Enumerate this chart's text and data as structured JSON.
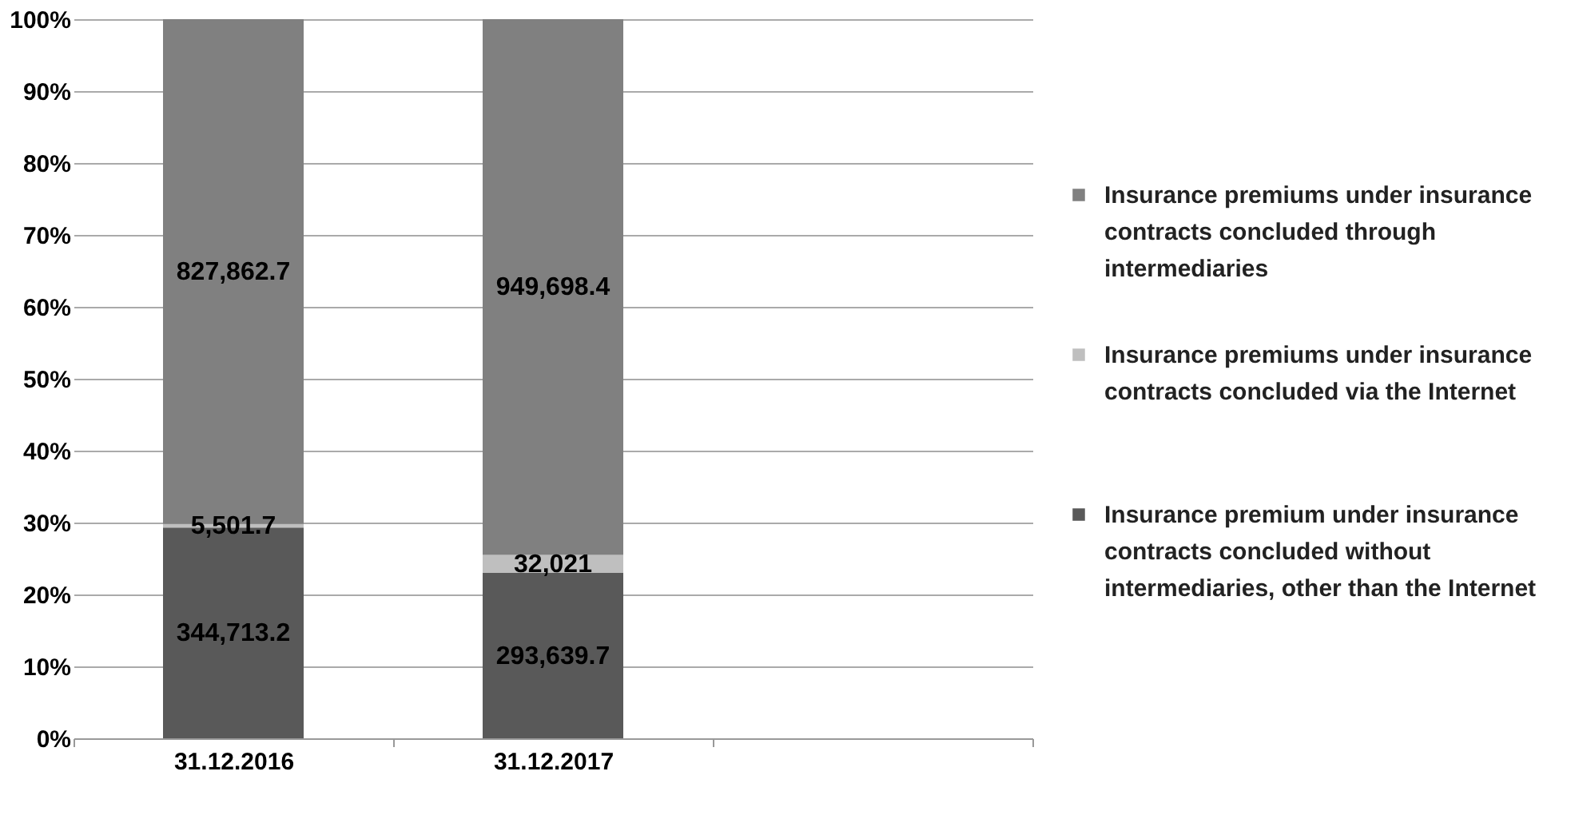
{
  "chart_data": {
    "type": "bar",
    "stacked": true,
    "categories": [
      "31.12.2016",
      "31.12.2017",
      null
    ],
    "ylim": [
      0,
      100
    ],
    "yticks": [
      {
        "value": 0,
        "label": "0%"
      },
      {
        "value": 10,
        "label": "10%"
      },
      {
        "value": 20,
        "label": "20%"
      },
      {
        "value": 30,
        "label": "30%"
      },
      {
        "value": 40,
        "label": "40%"
      },
      {
        "value": 50,
        "label": "50%"
      },
      {
        "value": 60,
        "label": "60%"
      },
      {
        "value": 70,
        "label": "70%"
      },
      {
        "value": 80,
        "label": "80%"
      },
      {
        "value": 90,
        "label": "90%"
      },
      {
        "value": 100,
        "label": "100%"
      }
    ],
    "grid": "y",
    "legend": "right",
    "series": [
      {
        "name": "Insurance premium under insurance contracts concluded without intermediaries, other than the Internet",
        "color": "#595959",
        "values": [
          29.3,
          23.0,
          null
        ]
      },
      {
        "name": "Insurance premiums under insurance contracts concluded via the Internet",
        "color": "#bfbfbf",
        "values": [
          0.5,
          2.5,
          null
        ]
      },
      {
        "name": "Insurance premiums under insurance contracts concluded through intermediaries",
        "color": "#808080",
        "values": [
          70.2,
          74.5,
          null
        ]
      }
    ],
    "annotations": [
      "344,713.2",
      "293,639.7",
      "5,501.7",
      "32,021",
      "827,862.7",
      "949,698.4"
    ]
  }
}
